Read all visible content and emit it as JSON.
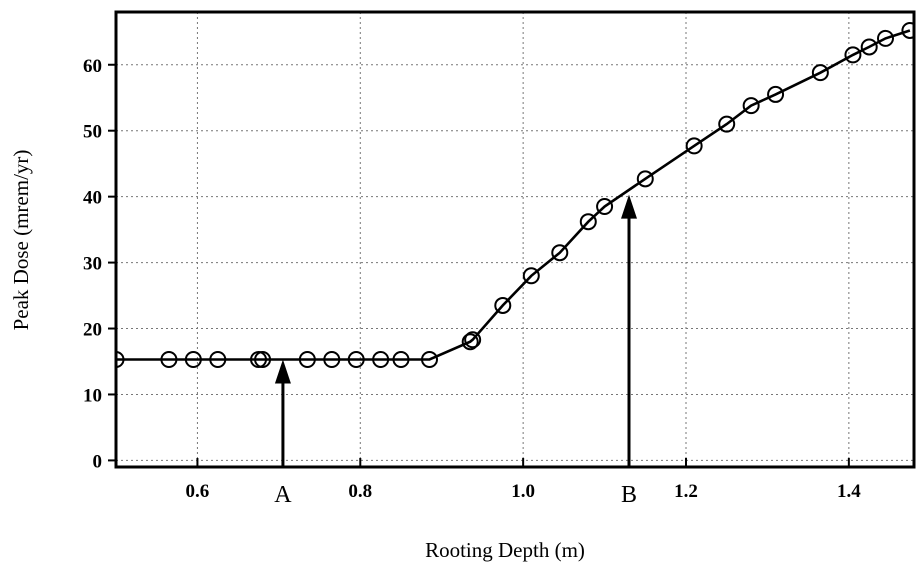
{
  "chart_data": {
    "type": "line",
    "xlabel": "Rooting Depth (m)",
    "ylabel": "Peak Dose (mrem/yr)",
    "xlim": [
      0.5,
      1.48
    ],
    "ylim": [
      -1,
      68
    ],
    "x_ticks": [
      0.6,
      0.8,
      1.0,
      1.2,
      1.4
    ],
    "x_tick_labels": [
      "0.6",
      "0.8",
      "1.0",
      "1.2",
      "1.4"
    ],
    "y_ticks": [
      0,
      10,
      20,
      30,
      40,
      50,
      60
    ],
    "y_tick_labels": [
      "0",
      "10",
      "20",
      "30",
      "40",
      "50",
      "60"
    ],
    "grid": true,
    "series": [
      {
        "marker": "open-circle",
        "color": "#000000",
        "x": [
          0.5,
          0.565,
          0.595,
          0.625,
          0.675,
          0.68,
          0.735,
          0.765,
          0.795,
          0.825,
          0.85,
          0.885,
          0.935,
          0.938,
          0.975,
          1.01,
          1.045,
          1.08,
          1.1,
          1.15,
          1.21,
          1.25,
          1.28,
          1.31,
          1.365,
          1.405,
          1.425,
          1.445,
          1.475
        ],
        "y": [
          15.3,
          15.3,
          15.3,
          15.3,
          15.3,
          15.3,
          15.3,
          15.3,
          15.3,
          15.3,
          15.3,
          15.3,
          18.0,
          18.3,
          23.5,
          28.0,
          31.5,
          36.2,
          38.5,
          42.7,
          47.7,
          51.0,
          53.8,
          55.5,
          58.8,
          61.5,
          62.7,
          64.0,
          65.2
        ]
      }
    ],
    "annotations": [
      {
        "label": "A",
        "x": 0.705,
        "y_from": -1,
        "y_to": 15.3
      },
      {
        "label": "B",
        "x": 1.13,
        "y_from": -1,
        "y_to": 40.3
      }
    ]
  }
}
